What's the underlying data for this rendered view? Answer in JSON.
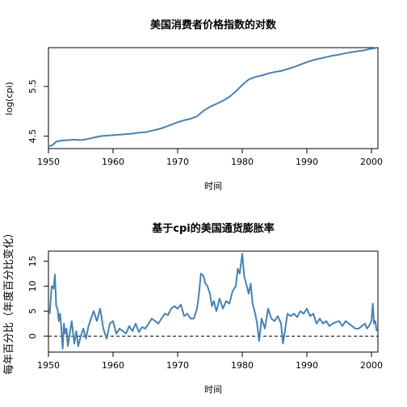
{
  "chart_data": [
    {
      "type": "line",
      "title": "美国消费者价格指数的对数",
      "xlabel": "时间",
      "ylabel": "log(cpi)",
      "xlim": [
        1950,
        2001
      ],
      "ylim": [
        4.25,
        6.28
      ],
      "xticks": [
        1950,
        1960,
        1970,
        1980,
        1990,
        2000
      ],
      "yticks": [
        4.5,
        5.5
      ],
      "ytick_labels": [
        "4.5",
        "5.5"
      ],
      "grid": false,
      "series": [
        {
          "color": "#4682b4",
          "x": [
            1950.0,
            1950.6,
            1951.2,
            1952.0,
            1953.0,
            1954.0,
            1955.0,
            1956.0,
            1957.0,
            1958.0,
            1959.0,
            1960.0,
            1961.0,
            1962.0,
            1963.0,
            1964.0,
            1965.0,
            1966.0,
            1967.0,
            1968.0,
            1969.0,
            1970.0,
            1971.0,
            1972.0,
            1973.0,
            1974.0,
            1975.0,
            1976.0,
            1977.0,
            1978.0,
            1979.0,
            1980.0,
            1981.0,
            1982.0,
            1983.0,
            1984.0,
            1985.0,
            1986.0,
            1987.0,
            1988.0,
            1989.0,
            1990.0,
            1991.0,
            1992.0,
            1993.0,
            1994.0,
            1995.0,
            1996.0,
            1997.0,
            1998.0,
            1999.0,
            2000.0,
            2000.7
          ],
          "y": [
            4.29,
            4.32,
            4.39,
            4.41,
            4.42,
            4.43,
            4.42,
            4.44,
            4.47,
            4.5,
            4.51,
            4.52,
            4.53,
            4.54,
            4.55,
            4.57,
            4.58,
            4.61,
            4.64,
            4.68,
            4.73,
            4.78,
            4.82,
            4.85,
            4.9,
            5.01,
            5.09,
            5.15,
            5.21,
            5.29,
            5.4,
            5.53,
            5.64,
            5.69,
            5.72,
            5.76,
            5.79,
            5.81,
            5.85,
            5.89,
            5.94,
            5.99,
            6.03,
            6.06,
            6.09,
            6.12,
            6.14,
            6.17,
            6.19,
            6.21,
            6.23,
            6.26,
            6.27
          ]
        }
      ]
    },
    {
      "type": "line",
      "title": "基于cpi的美国通货膨胀率",
      "xlabel": "时间",
      "ylabel": "每年百分比（年度百分比变化）",
      "xlim": [
        1950,
        2001
      ],
      "ylim": [
        -3.2,
        17.0
      ],
      "xticks": [
        1950,
        1960,
        1970,
        1980,
        1990,
        2000
      ],
      "yticks": [
        0,
        5,
        10,
        15
      ],
      "reference_line": {
        "y": 0,
        "style": "dashed"
      },
      "grid": false,
      "series": [
        {
          "color": "#4682b4",
          "x": [
            1950.2,
            1950.5,
            1950.8,
            1951.0,
            1951.2,
            1951.4,
            1951.6,
            1951.8,
            1952.0,
            1952.2,
            1952.4,
            1952.6,
            1952.8,
            1953.0,
            1953.3,
            1953.6,
            1954.0,
            1954.3,
            1954.6,
            1955.0,
            1955.4,
            1955.8,
            1956.2,
            1956.6,
            1957.0,
            1957.5,
            1958.0,
            1958.5,
            1959.0,
            1959.5,
            1960.0,
            1960.5,
            1961.0,
            1961.5,
            1962.0,
            1962.5,
            1963.0,
            1963.5,
            1964.0,
            1964.5,
            1965.0,
            1965.5,
            1966.0,
            1966.5,
            1967.0,
            1967.5,
            1968.0,
            1968.5,
            1969.0,
            1969.5,
            1970.0,
            1970.5,
            1971.0,
            1971.5,
            1972.0,
            1972.5,
            1973.0,
            1973.3,
            1973.6,
            1974.0,
            1974.3,
            1974.6,
            1975.0,
            1975.3,
            1975.6,
            1976.0,
            1976.5,
            1977.0,
            1977.5,
            1978.0,
            1978.5,
            1979.0,
            1979.3,
            1979.6,
            1980.0,
            1980.3,
            1980.6,
            1981.0,
            1981.3,
            1981.6,
            1982.0,
            1982.3,
            1982.6,
            1983.0,
            1983.5,
            1984.0,
            1984.5,
            1985.0,
            1985.5,
            1986.0,
            1986.3,
            1986.6,
            1987.0,
            1987.5,
            1988.0,
            1988.5,
            1989.0,
            1989.5,
            1990.0,
            1990.5,
            1991.0,
            1991.5,
            1992.0,
            1992.5,
            1993.0,
            1993.5,
            1994.0,
            1994.5,
            1995.0,
            1995.5,
            1996.0,
            1996.5,
            1997.0,
            1997.5,
            1998.0,
            1998.5,
            1999.0,
            1999.3,
            1999.6,
            2000.0,
            2000.2,
            2000.4,
            2000.6,
            2000.8
          ],
          "y": [
            4.5,
            10.0,
            9.5,
            12.3,
            6.0,
            5.5,
            3.0,
            4.5,
            1.5,
            -2.5,
            2.5,
            0.5,
            1.5,
            -2.0,
            0.5,
            3.0,
            -1.5,
            1.0,
            -2.0,
            0.0,
            1.5,
            -0.5,
            2.0,
            3.5,
            5.0,
            3.0,
            5.5,
            1.5,
            -0.5,
            2.5,
            3.0,
            0.5,
            1.5,
            1.0,
            0.5,
            2.0,
            1.0,
            2.5,
            0.8,
            1.8,
            1.5,
            2.5,
            3.5,
            3.0,
            2.5,
            3.5,
            4.5,
            4.2,
            5.5,
            6.0,
            5.5,
            6.3,
            4.0,
            4.5,
            3.5,
            3.5,
            5.5,
            8.5,
            12.5,
            12.0,
            10.5,
            10.0,
            8.5,
            6.0,
            7.0,
            5.0,
            7.5,
            5.5,
            7.0,
            6.5,
            9.0,
            10.0,
            13.5,
            12.5,
            16.5,
            12.0,
            10.5,
            8.5,
            10.5,
            6.5,
            4.5,
            2.5,
            -1.0,
            3.5,
            1.5,
            5.5,
            3.5,
            3.0,
            4.0,
            2.5,
            -1.5,
            1.0,
            4.5,
            4.0,
            4.5,
            3.8,
            5.0,
            4.5,
            5.5,
            4.0,
            4.5,
            2.5,
            3.5,
            2.5,
            3.0,
            2.0,
            2.5,
            2.8,
            3.0,
            2.0,
            3.0,
            2.5,
            2.0,
            1.5,
            1.5,
            2.0,
            2.5,
            1.5,
            2.0,
            3.0,
            6.5,
            2.5,
            3.0,
            1.0
          ]
        }
      ]
    }
  ]
}
